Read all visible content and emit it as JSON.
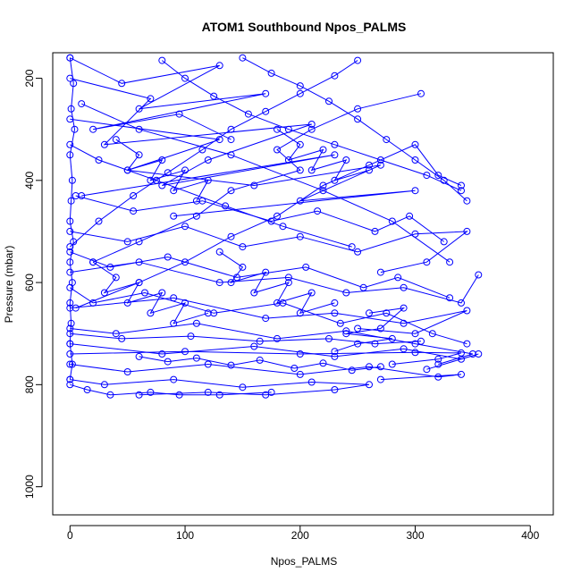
{
  "chart_data": {
    "type": "scatter",
    "title": "ATOM1 Southbound Npos_PALMS",
    "xlabel": "Npos_PALMS",
    "ylabel": "Pressure (mbar)",
    "xlim": [
      -15,
      420
    ],
    "ylim": [
      1055,
      150
    ],
    "y_reversed": true,
    "x_ticks": [
      0,
      100,
      200,
      300,
      400
    ],
    "y_ticks": [
      200,
      400,
      600,
      800,
      1000
    ],
    "x_tick_labels": [
      "0",
      "100",
      "200",
      "300",
      "400"
    ],
    "y_tick_labels": [
      "200",
      "400",
      "600",
      "800",
      "1000"
    ],
    "grid": false,
    "legend": "none",
    "series_color": "#0000ff",
    "series": [
      {
        "x": [
          0,
          45,
          130,
          60,
          170,
          20,
          95,
          140
        ],
        "y": [
          160,
          210,
          175,
          260,
          230,
          300,
          270,
          320
        ]
      },
      {
        "x": [
          0,
          70,
          30,
          210,
          120,
          80,
          230,
          10
        ],
        "y": [
          200,
          240,
          330,
          290,
          360,
          410,
          350,
          430
        ]
      },
      {
        "x": [
          0,
          130,
          50,
          160,
          270,
          200,
          300,
          90
        ],
        "y": [
          280,
          320,
          380,
          410,
          370,
          440,
          420,
          470
        ]
      },
      {
        "x": [
          305,
          250,
          210,
          180,
          200,
          140,
          110,
          60,
          20
        ],
        "y": [
          230,
          260,
          300,
          340,
          380,
          420,
          470,
          520,
          560
        ]
      },
      {
        "x": [
          340,
          320,
          300,
          260,
          220,
          180,
          140,
          100,
          60,
          5
        ],
        "y": [
          410,
          390,
          330,
          370,
          410,
          470,
          510,
          560,
          600,
          650
        ]
      },
      {
        "x": [
          0,
          50,
          100,
          150,
          200,
          250,
          300,
          345,
          310,
          270
        ],
        "y": [
          500,
          520,
          490,
          530,
          510,
          540,
          505,
          500,
          560,
          580
        ]
      },
      {
        "x": [
          0,
          60,
          130,
          190,
          240,
          290,
          340,
          355
        ],
        "y": [
          580,
          560,
          600,
          590,
          620,
          610,
          640,
          585
        ]
      },
      {
        "x": [
          0,
          90,
          170,
          230,
          290,
          345,
          300,
          250
        ],
        "y": [
          650,
          630,
          670,
          660,
          680,
          655,
          700,
          690
        ]
      },
      {
        "x": [
          0,
          40,
          110,
          180,
          240,
          300,
          350,
          320
        ],
        "y": [
          690,
          700,
          680,
          710,
          695,
          720,
          740,
          760
        ]
      },
      {
        "x": [
          0,
          80,
          160,
          230,
          290,
          340,
          355,
          310
        ],
        "y": [
          720,
          740,
          725,
          745,
          730,
          750,
          740,
          770
        ]
      },
      {
        "x": [
          0,
          50,
          120,
          200,
          260,
          320,
          340,
          270
        ],
        "y": [
          760,
          775,
          760,
          780,
          765,
          785,
          780,
          790
        ]
      },
      {
        "x": [
          0,
          30,
          90,
          150,
          210,
          260,
          230,
          170,
          120,
          60
        ],
        "y": [
          790,
          800,
          790,
          805,
          795,
          800,
          810,
          820,
          815,
          820
        ]
      },
      {
        "x": [
          0,
          15,
          35,
          70,
          95,
          130,
          175
        ],
        "y": [
          800,
          810,
          820,
          815,
          820,
          820,
          815
        ]
      },
      {
        "x": [
          10,
          60,
          140,
          220,
          280,
          330
        ],
        "y": [
          250,
          300,
          350,
          420,
          480,
          560
        ]
      },
      {
        "x": [
          0,
          25,
          75,
          135,
          185,
          245
        ],
        "y": [
          330,
          360,
          400,
          450,
          490,
          530
        ]
      },
      {
        "x": [
          5,
          55,
          115,
          175,
          215,
          265,
          295,
          325
        ],
        "y": [
          430,
          460,
          440,
          480,
          460,
          500,
          470,
          520
        ]
      },
      {
        "x": [
          0,
          35,
          85,
          145,
          205,
          255,
          285,
          330
        ],
        "y": [
          540,
          570,
          550,
          590,
          570,
          610,
          590,
          630
        ]
      },
      {
        "x": [
          0,
          20,
          65,
          125,
          185,
          235,
          275,
          315,
          345
        ],
        "y": [
          610,
          640,
          620,
          660,
          640,
          680,
          660,
          700,
          720
        ]
      },
      {
        "x": [
          0,
          45,
          105,
          165,
          225,
          265,
          305
        ],
        "y": [
          700,
          710,
          705,
          715,
          710,
          720,
          715
        ]
      },
      {
        "x": [
          0,
          100,
          200,
          300,
          340,
          320,
          280
        ],
        "y": [
          740,
          735,
          740,
          737,
          738,
          750,
          760
        ]
      },
      {
        "x": [
          150,
          175,
          200,
          225,
          250,
          275,
          300,
          325,
          345
        ],
        "y": [
          160,
          190,
          215,
          245,
          280,
          320,
          360,
          400,
          440
        ]
      },
      {
        "x": [
          80,
          100,
          125,
          155,
          190,
          230,
          270,
          310,
          340
        ],
        "y": [
          165,
          200,
          235,
          270,
          300,
          330,
          360,
          390,
          420
        ]
      },
      {
        "x": [
          250,
          230,
          200,
          170,
          140,
          115,
          85,
          55,
          25,
          0
        ],
        "y": [
          165,
          195,
          230,
          265,
          300,
          340,
          385,
          430,
          480,
          530
        ]
      },
      {
        "x": [
          0,
          3,
          1,
          4,
          0,
          2,
          1,
          0,
          3,
          0,
          2,
          0,
          1,
          0,
          2,
          0
        ],
        "y": [
          160,
          210,
          260,
          300,
          350,
          400,
          440,
          480,
          520,
          560,
          600,
          640,
          680,
          720,
          760,
          790
        ]
      },
      {
        "x": [
          20,
          40,
          30,
          60,
          50,
          80,
          70,
          100,
          90,
          120
        ],
        "y": [
          560,
          590,
          620,
          600,
          640,
          620,
          660,
          640,
          680,
          660
        ]
      },
      {
        "x": [
          130,
          150,
          140,
          170,
          160,
          190,
          180,
          210,
          200,
          230
        ],
        "y": [
          540,
          570,
          600,
          580,
          620,
          600,
          640,
          620,
          660,
          640
        ]
      },
      {
        "x": [
          40,
          60,
          50,
          80,
          70,
          100,
          90,
          120,
          110
        ],
        "y": [
          320,
          350,
          380,
          360,
          400,
          380,
          420,
          400,
          440
        ]
      },
      {
        "x": [
          180,
          200,
          190,
          220,
          210,
          240,
          230,
          260
        ],
        "y": [
          300,
          330,
          360,
          340,
          380,
          360,
          400,
          380
        ]
      },
      {
        "x": [
          260,
          290,
          270,
          240,
          280,
          250,
          230
        ],
        "y": [
          660,
          650,
          690,
          700,
          710,
          720,
          735
        ]
      },
      {
        "x": [
          60,
          85,
          110,
          140,
          165,
          195,
          220,
          245,
          270
        ],
        "y": [
          745,
          755,
          748,
          762,
          752,
          768,
          758,
          772,
          765
        ]
      }
    ]
  }
}
